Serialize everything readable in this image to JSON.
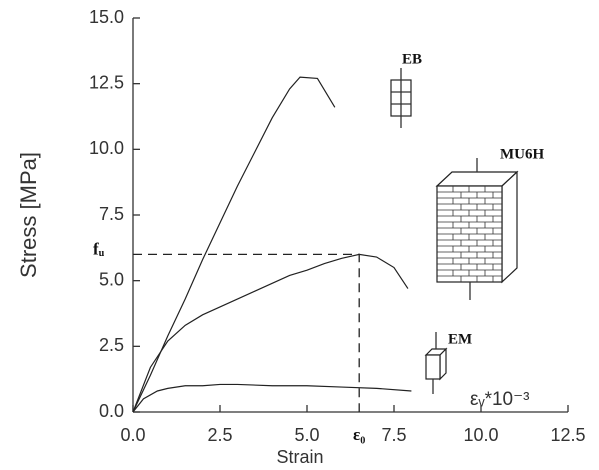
{
  "chart_data": {
    "type": "line",
    "x_label": "Strain",
    "y_label": "Stress  [MPa]",
    "xlim": [
      0,
      12.5
    ],
    "ylim": [
      0,
      15
    ],
    "xticks": [
      {
        "value": 0,
        "label": "0.0"
      },
      {
        "value": 2.5,
        "label": "2.5"
      },
      {
        "value": 5,
        "label": "5.0"
      },
      {
        "value": 7.5,
        "label": "7.5"
      },
      {
        "value": 10,
        "label": "10.0"
      },
      {
        "value": 12.5,
        "label": "12.5"
      }
    ],
    "yticks": [
      {
        "value": 0,
        "label": "0.0"
      },
      {
        "value": 2.5,
        "label": "2.5"
      },
      {
        "value": 5,
        "label": "5.0"
      },
      {
        "value": 7.5,
        "label": "7.5"
      },
      {
        "value": 10,
        "label": "10.0"
      },
      {
        "value": 12.5,
        "label": "12.5"
      },
      {
        "value": 15,
        "label": "15.0"
      }
    ],
    "peak_labels": {
      "stress": "fᵤ",
      "strain": "ε₀"
    },
    "unit_note": "εᵥ*10⁻³",
    "series": [
      {
        "name": "EB",
        "color": "#222222",
        "x": [
          0,
          0.5,
          1,
          1.5,
          2,
          2.5,
          3,
          3.5,
          4,
          4.5,
          4.8,
          5.3,
          5.8
        ],
        "values": [
          0,
          1.4,
          2.9,
          4.3,
          5.8,
          7.2,
          8.6,
          9.9,
          11.2,
          12.3,
          12.75,
          12.7,
          11.6
        ]
      },
      {
        "name": "MU6H",
        "color": "#222222",
        "x": [
          0,
          0.5,
          1,
          1.5,
          2,
          2.5,
          3,
          3.5,
          4,
          4.5,
          5,
          5.5,
          6,
          6.5,
          7,
          7.5,
          7.9
        ],
        "values": [
          0,
          1.7,
          2.7,
          3.3,
          3.7,
          4.0,
          4.3,
          4.6,
          4.9,
          5.2,
          5.4,
          5.65,
          5.85,
          6.0,
          5.9,
          5.5,
          4.7
        ]
      },
      {
        "name": "EM",
        "color": "#222222",
        "x": [
          0,
          0.3,
          0.7,
          1,
          1.5,
          2,
          2.5,
          3,
          4,
          5,
          6,
          7,
          8
        ],
        "values": [
          0,
          0.5,
          0.8,
          0.9,
          1.0,
          1.0,
          1.05,
          1.05,
          1.0,
          1.0,
          0.95,
          0.9,
          0.8
        ]
      }
    ]
  }
}
